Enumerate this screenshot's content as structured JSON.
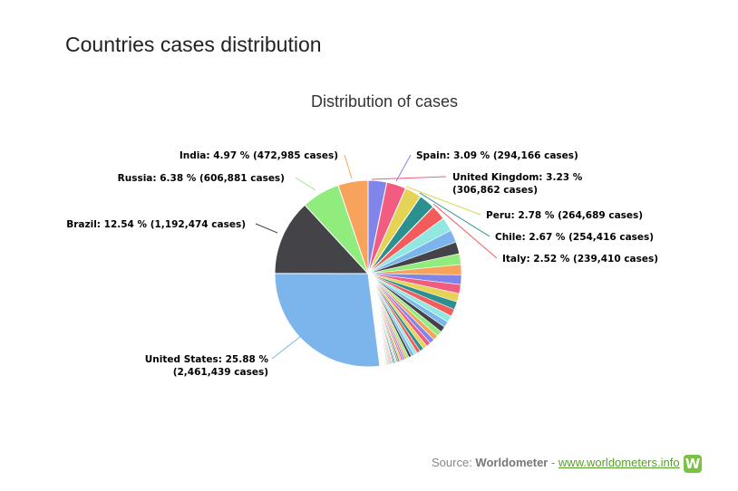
{
  "page": {
    "title": "Countries cases distribution"
  },
  "chart_data": {
    "type": "pie",
    "title": "Distribution of cases",
    "labeled_slices": [
      {
        "name": "United States",
        "percent": 25.88,
        "cases": "2,461,439",
        "label_line1": "United States: 25.88 %",
        "label_line2": "(2,461,439 cases)",
        "color": "#7cb5ec"
      },
      {
        "name": "Brazil",
        "percent": 12.54,
        "cases": "1,192,474",
        "label_line1": "Brazil: 12.54 % (1,192,474 cases)",
        "label_line2": "",
        "color": "#434348"
      },
      {
        "name": "Russia",
        "percent": 6.38,
        "cases": "606,881",
        "label_line1": "Russia: 6.38 % (606,881 cases)",
        "label_line2": "",
        "color": "#90ed7d"
      },
      {
        "name": "India",
        "percent": 4.97,
        "cases": "472,985",
        "label_line1": "India: 4.97 % (472,985 cases)",
        "label_line2": "",
        "color": "#f7a35c"
      },
      {
        "name": "Spain",
        "percent": 3.09,
        "cases": "294,166",
        "label_line1": "Spain: 3.09 % (294,166 cases)",
        "label_line2": "",
        "color": "#8085e9"
      },
      {
        "name": "United Kingdom",
        "percent": 3.23,
        "cases": "306,862",
        "label_line1": "United Kingdom: 3.23 %",
        "label_line2": "(306,862 cases)",
        "color": "#f15c80"
      },
      {
        "name": "Peru",
        "percent": 2.78,
        "cases": "264,689",
        "label_line1": "Peru: 2.78 % (264,689 cases)",
        "label_line2": "",
        "color": "#e4d354"
      },
      {
        "name": "Chile",
        "percent": 2.67,
        "cases": "254,416",
        "label_line1": "Chile: 2.67 % (254,416 cases)",
        "label_line2": "",
        "color": "#2b908f"
      },
      {
        "name": "Italy",
        "percent": 2.52,
        "cases": "239,410",
        "label_line1": "Italy: 2.52 % (239,410 cases)",
        "label_line2": "",
        "color": "#f45b5b"
      }
    ],
    "unlabeled_slices": [
      2.3,
      2.1,
      1.95,
      1.8,
      1.7,
      1.6,
      1.5,
      1.4,
      1.3,
      1.2,
      1.1,
      1.0,
      0.95,
      0.9,
      0.85,
      0.8,
      0.75,
      0.7,
      0.65,
      0.6,
      0.55,
      0.5,
      0.45,
      0.4,
      0.35,
      0.3,
      0.3,
      0.28,
      0.26,
      0.24,
      0.22,
      0.2,
      0.2,
      0.18,
      0.18,
      0.16,
      0.16,
      0.14,
      0.14,
      0.12,
      0.12,
      0.1,
      0.1,
      0.1,
      0.09,
      0.09,
      0.08,
      0.08,
      0.07,
      0.07,
      0.06,
      0.06,
      0.05,
      0.05,
      0.05
    ],
    "palette": [
      "#91e8e1",
      "#7cb5ec",
      "#434348",
      "#90ed7d",
      "#f7a35c",
      "#8085e9",
      "#f15c80",
      "#e4d354",
      "#2b908f",
      "#f45b5b"
    ]
  },
  "source": {
    "prefix": "Source: ",
    "brand": "Worldometer",
    "sep": " - ",
    "link": "www.worldometers.info",
    "logo_letter": "W"
  }
}
